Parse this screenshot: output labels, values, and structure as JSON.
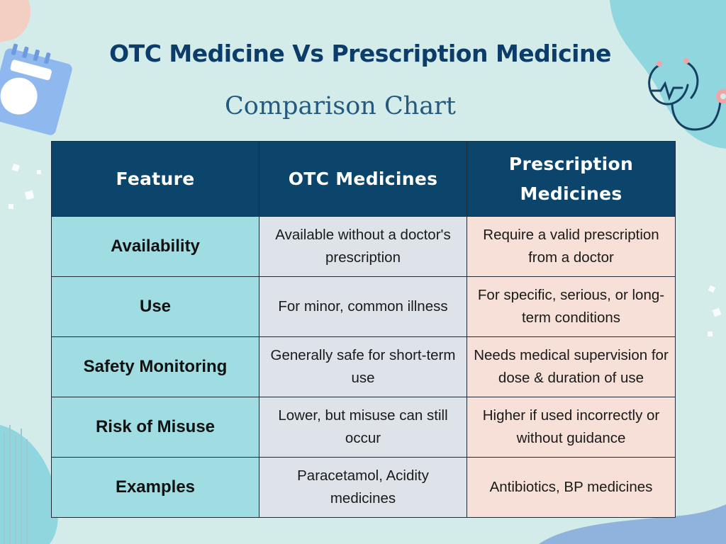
{
  "title": "OTC Medicine Vs Prescription Medicine",
  "subtitle": "Comparison Chart",
  "colors": {
    "background": "#d4ece9",
    "header_bg": "#0b456c",
    "feature_col_bg": "#9fdde3",
    "otc_col_bg": "#dde3e9",
    "rx_col_bg": "#f6e0d8",
    "title_color": "#0c3d6a",
    "accent_teal": "#8fd6df",
    "accent_pink": "#f4a3a3"
  },
  "decorations": [
    "calendar-icon",
    "stethoscope-icon"
  ],
  "chart_data": {
    "type": "table",
    "columns": [
      "Feature",
      "OTC Medicines",
      "Prescription Medicines"
    ],
    "rows": [
      [
        "Availability",
        "Available without a doctor's prescription",
        "Require a valid prescription from a doctor"
      ],
      [
        "Use",
        "For minor, common illness",
        "For specific, serious, or long-term conditions"
      ],
      [
        "Safety Monitoring",
        "Generally safe for short-term use",
        "Needs medical supervision for dose & duration of use"
      ],
      [
        "Risk of Misuse",
        "Lower, but misuse can still occur",
        "Higher if used incorrectly or without guidance"
      ],
      [
        "Examples",
        "Paracetamol, Acidity medicines",
        "Antibiotics, BP medicines"
      ]
    ]
  }
}
